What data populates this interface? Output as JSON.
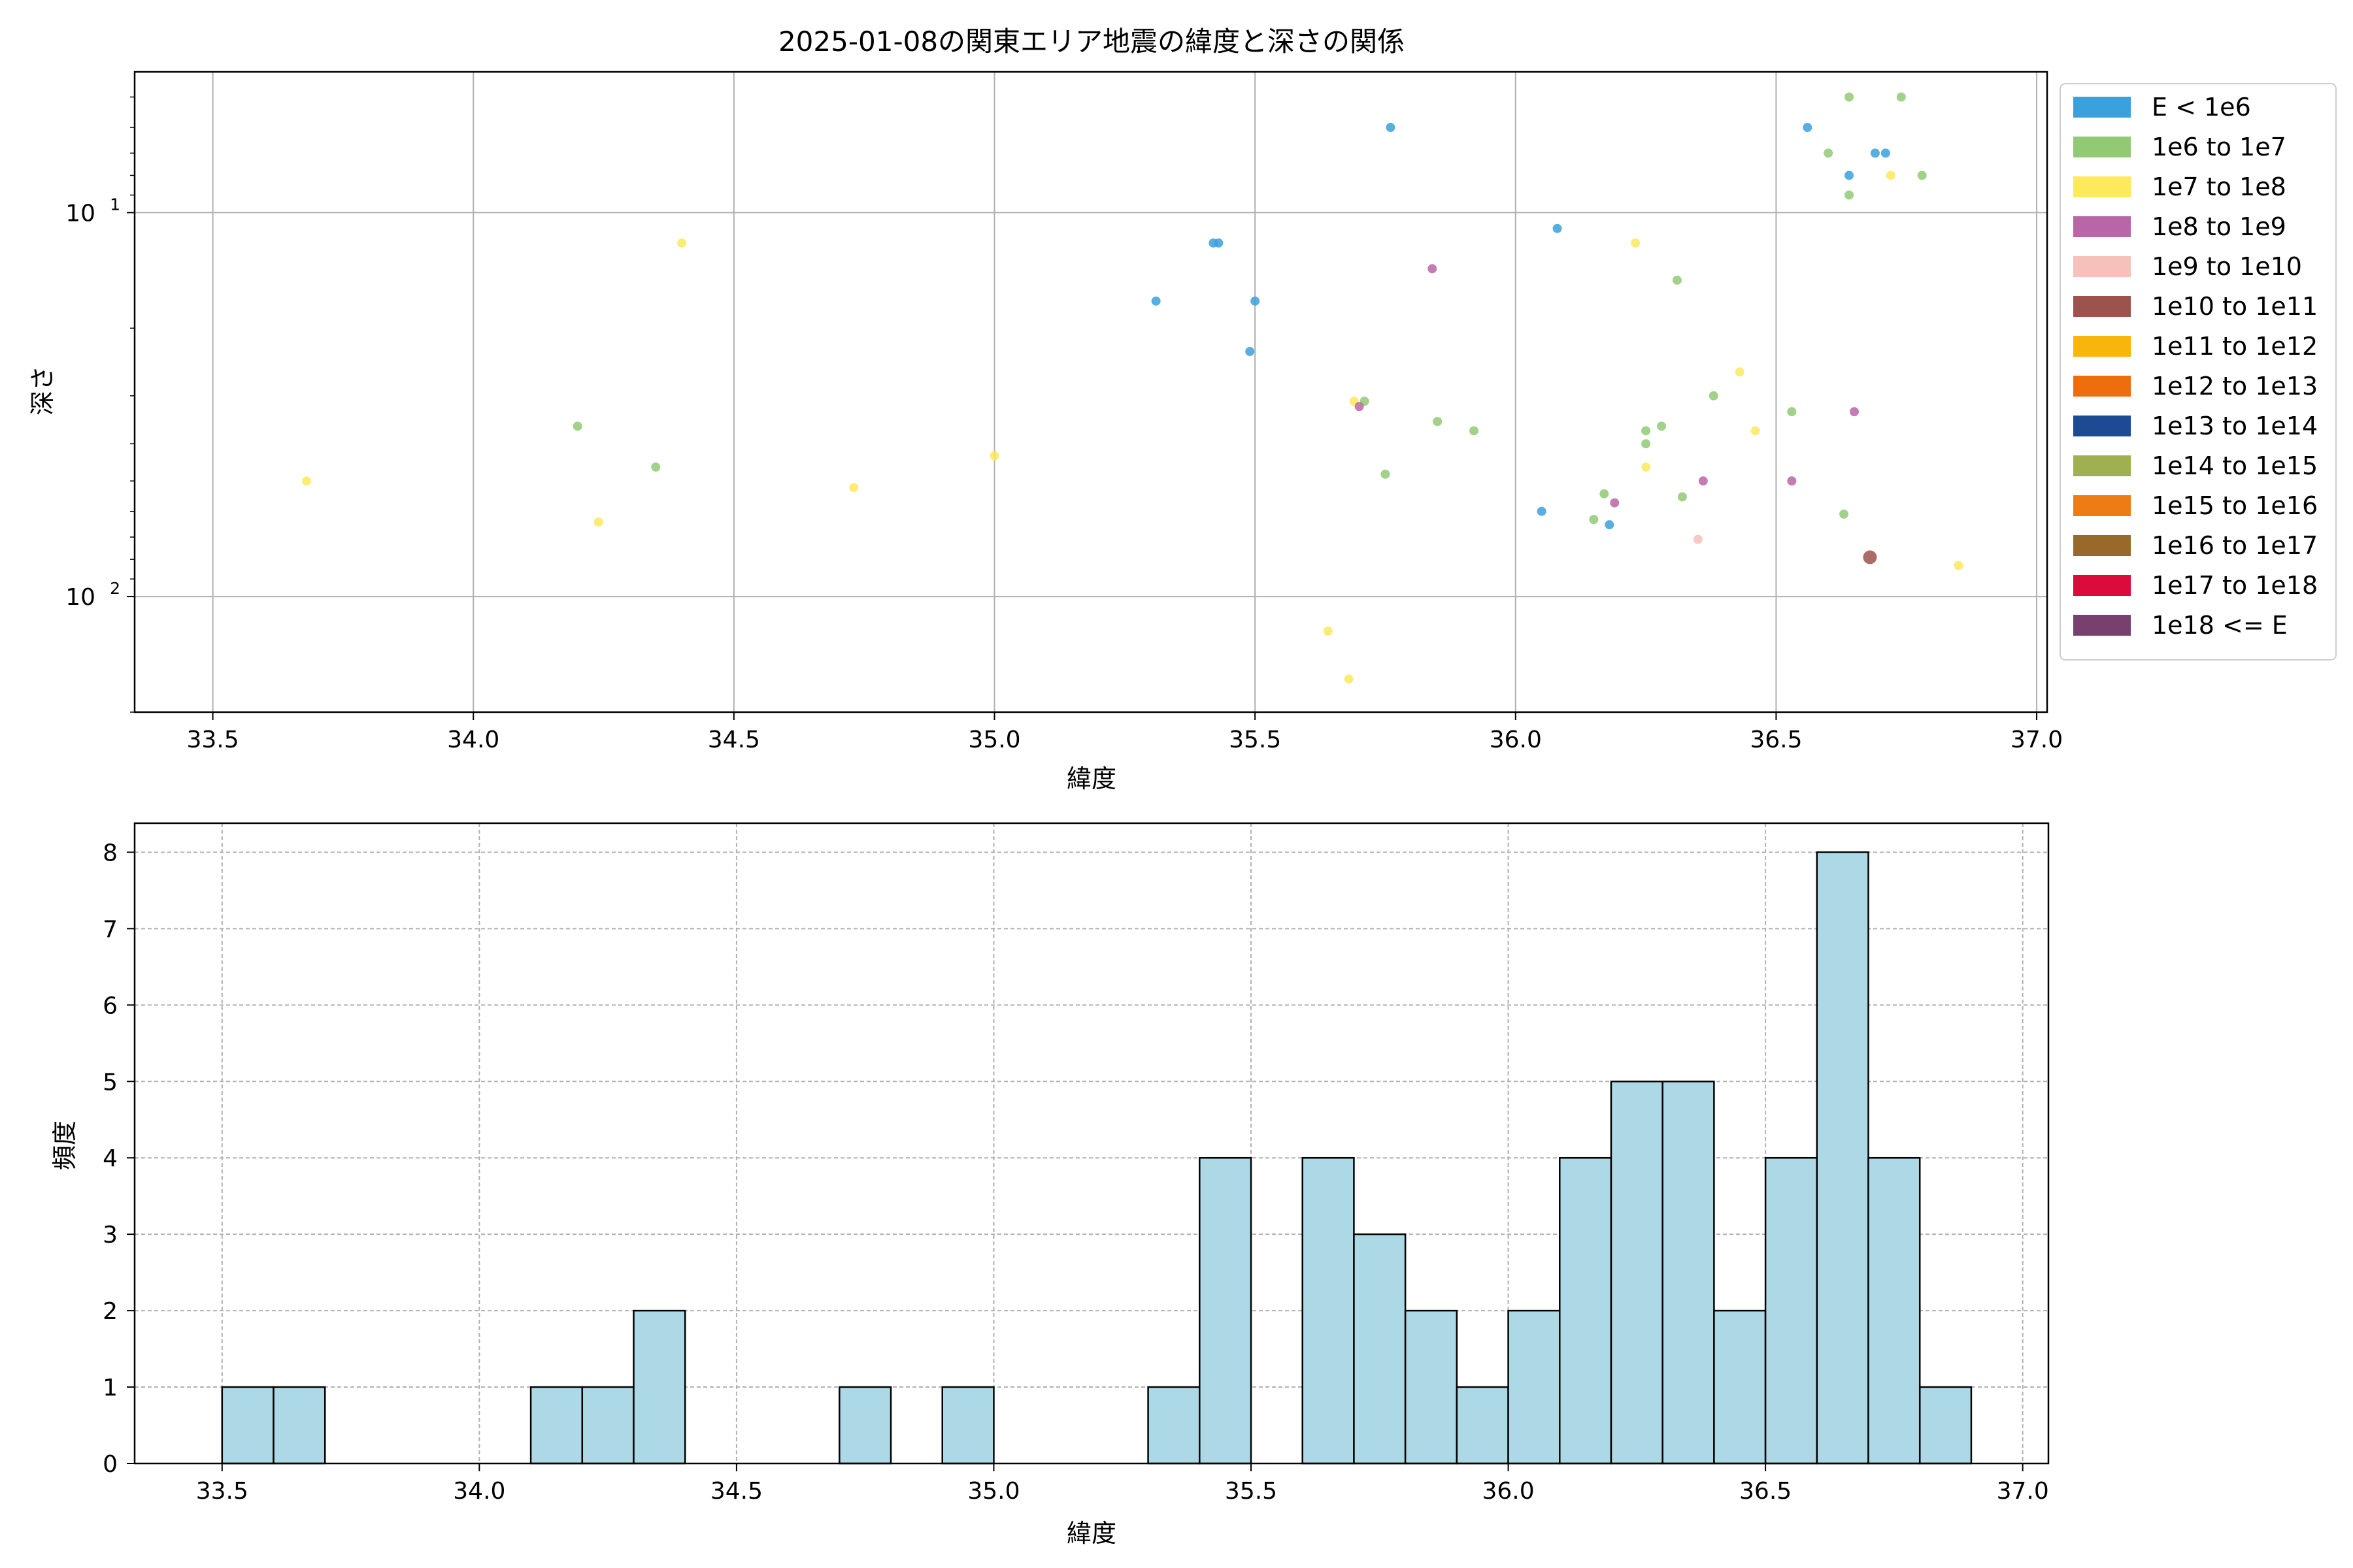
{
  "chart_data": [
    {
      "type": "scatter",
      "title": "2025-01-08の関東エリア地震の緯度と深さの関係",
      "xlabel": "緯度",
      "ylabel": "深さ",
      "xlim": [
        33.35,
        37.02
      ],
      "ylim": [
        200,
        4.3
      ],
      "y_scale": "log",
      "y_inverted": true,
      "grid": true,
      "x_ticks": [
        33.5,
        34.0,
        34.5,
        35.0,
        35.5,
        36.0,
        36.5,
        37.0
      ],
      "x_tick_labels": [
        "33.5",
        "34.0",
        "34.5",
        "35.0",
        "35.5",
        "36.0",
        "36.5",
        "37.0"
      ],
      "y_major_ticks": [
        {
          "value": 10,
          "base": "10",
          "exp": "1"
        },
        {
          "value": 100,
          "base": "10",
          "exp": "2"
        }
      ],
      "y_minor_ticks": [
        5,
        6,
        7,
        8,
        9,
        20,
        30,
        40,
        50,
        60,
        70,
        80,
        90,
        200
      ],
      "legend_position": "outside right",
      "legend": [
        {
          "label": "E < 1e6",
          "color": "#3ca0dc"
        },
        {
          "label": "1e6 to 1e7",
          "color": "#92c974"
        },
        {
          "label": "1e7 to 1e8",
          "color": "#fde95c"
        },
        {
          "label": "1e8 to 1e9",
          "color": "#b866a6"
        },
        {
          "label": "1e9 to 1e10",
          "color": "#f5c1ba"
        },
        {
          "label": "1e10 to 1e11",
          "color": "#9c534d"
        },
        {
          "label": "1e11 to 1e12",
          "color": "#f8b50b"
        },
        {
          "label": "1e12 to 1e13",
          "color": "#ee6e0d"
        },
        {
          "label": "1e13 to 1e14",
          "color": "#1c4a93"
        },
        {
          "label": "1e14 to 1e15",
          "color": "#9eb050"
        },
        {
          "label": "1e15 to 1e16",
          "color": "#ee7c14"
        },
        {
          "label": "1e16 to 1e17",
          "color": "#99682b"
        },
        {
          "label": "1e17 to 1e18",
          "color": "#dd0a3c"
        },
        {
          "label": "1e18 <= E",
          "color": "#77406e"
        }
      ],
      "points": [
        {
          "x": 35.76,
          "y": 6,
          "c": 0
        },
        {
          "x": 36.56,
          "y": 6,
          "c": 0
        },
        {
          "x": 36.69,
          "y": 7,
          "c": 0
        },
        {
          "x": 36.71,
          "y": 7,
          "c": 0
        },
        {
          "x": 36.64,
          "y": 8,
          "c": 0
        },
        {
          "x": 36.08,
          "y": 11,
          "c": 0
        },
        {
          "x": 35.42,
          "y": 12,
          "c": 0
        },
        {
          "x": 35.43,
          "y": 12,
          "c": 0
        },
        {
          "x": 35.31,
          "y": 17,
          "c": 0
        },
        {
          "x": 35.5,
          "y": 17,
          "c": 0
        },
        {
          "x": 35.49,
          "y": 23,
          "c": 0
        },
        {
          "x": 36.05,
          "y": 60,
          "c": 0
        },
        {
          "x": 36.18,
          "y": 65,
          "c": 0
        },
        {
          "x": 36.64,
          "y": 5,
          "c": 1
        },
        {
          "x": 36.74,
          "y": 5,
          "c": 1
        },
        {
          "x": 36.6,
          "y": 7,
          "c": 1
        },
        {
          "x": 36.78,
          "y": 8,
          "c": 1
        },
        {
          "x": 36.64,
          "y": 9,
          "c": 1
        },
        {
          "x": 36.31,
          "y": 15,
          "c": 1
        },
        {
          "x": 36.38,
          "y": 30,
          "c": 1
        },
        {
          "x": 35.71,
          "y": 31,
          "c": 1
        },
        {
          "x": 36.53,
          "y": 33,
          "c": 1
        },
        {
          "x": 35.85,
          "y": 35,
          "c": 1
        },
        {
          "x": 36.28,
          "y": 36,
          "c": 1
        },
        {
          "x": 34.2,
          "y": 36,
          "c": 1
        },
        {
          "x": 35.92,
          "y": 37,
          "c": 1
        },
        {
          "x": 36.25,
          "y": 37,
          "c": 1
        },
        {
          "x": 36.25,
          "y": 40,
          "c": 1
        },
        {
          "x": 34.35,
          "y": 46,
          "c": 1
        },
        {
          "x": 35.75,
          "y": 48,
          "c": 1
        },
        {
          "x": 36.17,
          "y": 54,
          "c": 1
        },
        {
          "x": 36.32,
          "y": 55,
          "c": 1
        },
        {
          "x": 36.15,
          "y": 63,
          "c": 1
        },
        {
          "x": 36.63,
          "y": 61,
          "c": 1
        },
        {
          "x": 36.72,
          "y": 8,
          "c": 2
        },
        {
          "x": 34.4,
          "y": 12,
          "c": 2
        },
        {
          "x": 36.23,
          "y": 12,
          "c": 2
        },
        {
          "x": 36.43,
          "y": 26,
          "c": 2
        },
        {
          "x": 35.69,
          "y": 31,
          "c": 2
        },
        {
          "x": 36.46,
          "y": 37,
          "c": 2
        },
        {
          "x": 35.0,
          "y": 43,
          "c": 2
        },
        {
          "x": 36.25,
          "y": 46,
          "c": 2
        },
        {
          "x": 33.68,
          "y": 50,
          "c": 2
        },
        {
          "x": 34.73,
          "y": 52,
          "c": 2
        },
        {
          "x": 34.24,
          "y": 64,
          "c": 2
        },
        {
          "x": 36.85,
          "y": 83,
          "c": 2
        },
        {
          "x": 35.64,
          "y": 123,
          "c": 2
        },
        {
          "x": 35.68,
          "y": 164,
          "c": 2
        },
        {
          "x": 35.84,
          "y": 14,
          "c": 3
        },
        {
          "x": 35.7,
          "y": 32,
          "c": 3
        },
        {
          "x": 36.65,
          "y": 33,
          "c": 3
        },
        {
          "x": 36.36,
          "y": 50,
          "c": 3
        },
        {
          "x": 36.53,
          "y": 50,
          "c": 3
        },
        {
          "x": 36.19,
          "y": 57,
          "c": 3
        },
        {
          "x": 36.35,
          "y": 71,
          "c": 4
        },
        {
          "x": 36.68,
          "y": 79,
          "c": 5,
          "big": true
        }
      ]
    },
    {
      "type": "bar",
      "title": "",
      "xlabel": "緯度",
      "ylabel": "頻度",
      "xlim": [
        33.33,
        37.05
      ],
      "ylim": [
        0,
        8.38
      ],
      "grid": true,
      "bar_color": "#add8e6",
      "bin_edges": [
        33.5,
        33.6,
        33.7,
        33.8,
        33.9,
        34.0,
        34.1,
        34.2,
        34.3,
        34.4,
        34.5,
        34.6,
        34.7,
        34.8,
        34.9,
        35.0,
        35.1,
        35.2,
        35.3,
        35.4,
        35.5,
        35.6,
        35.7,
        35.8,
        35.9,
        36.0,
        36.1,
        36.2,
        36.3,
        36.4,
        36.5,
        36.6,
        36.7,
        36.8,
        36.9
      ],
      "values": [
        1,
        1,
        0,
        0,
        0,
        0,
        1,
        1,
        2,
        0,
        0,
        0,
        1,
        0,
        1,
        0,
        0,
        0,
        1,
        4,
        0,
        4,
        3,
        2,
        1,
        2,
        4,
        5,
        5,
        2,
        4,
        8,
        4,
        1
      ],
      "x_ticks": [
        33.5,
        34.0,
        34.5,
        35.0,
        35.5,
        36.0,
        36.5,
        37.0
      ],
      "x_tick_labels": [
        "33.5",
        "34.0",
        "34.5",
        "35.0",
        "35.5",
        "36.0",
        "36.5",
        "37.0"
      ],
      "y_ticks": [
        0,
        1,
        2,
        3,
        4,
        5,
        6,
        7,
        8
      ],
      "y_tick_labels": [
        "0",
        "1",
        "2",
        "3",
        "4",
        "5",
        "6",
        "7",
        "8"
      ]
    }
  ]
}
